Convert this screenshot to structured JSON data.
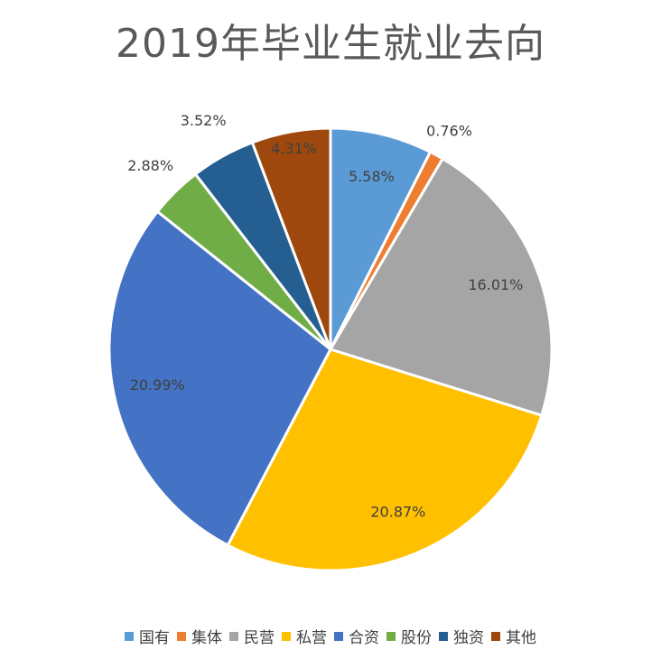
{
  "chart_data": {
    "type": "pie",
    "title": "2019年毕业生就业去向",
    "categories": [
      "国有",
      "集体",
      "民营",
      "私营",
      "合资",
      "股份",
      "独资",
      "其他"
    ],
    "values": [
      5.58,
      0.76,
      16.01,
      20.87,
      20.99,
      2.88,
      3.52,
      4.31
    ],
    "labels": [
      "5.58%",
      "0.76%",
      "16.01%",
      "20.87%",
      "20.99%",
      "2.88%",
      "3.52%",
      "4.31%"
    ],
    "colors": [
      "#5B9BD5",
      "#ED7D31",
      "#A5A5A5",
      "#FFC000",
      "#4472C4",
      "#70AD47",
      "#255E91",
      "#9E480E"
    ],
    "legend_position": "bottom"
  }
}
